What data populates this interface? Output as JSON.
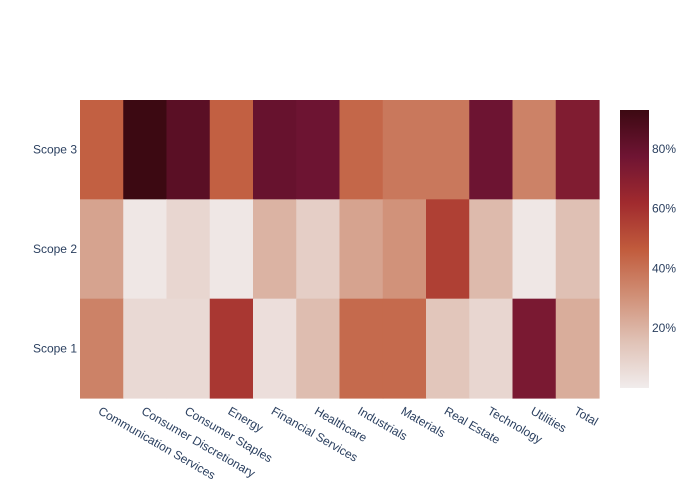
{
  "chart_data": {
    "type": "heatmap",
    "title": "",
    "xlabel": "",
    "ylabel": "",
    "categories": [
      "Communication Services",
      "Consumer Discretionary",
      "Consumer Staples",
      "Energy",
      "Financial Services",
      "Healthcare",
      "Industrials",
      "Materials",
      "Real Estate",
      "Technology",
      "Utilities",
      "Total"
    ],
    "rows": [
      "Scope 3",
      "Scope 2",
      "Scope 1"
    ],
    "z": [
      [
        45,
        93,
        84,
        45,
        80,
        78,
        43,
        38,
        38,
        78,
        35,
        72
      ],
      [
        25,
        2,
        8,
        2,
        20,
        11,
        25,
        30,
        55,
        18,
        2,
        16
      ],
      [
        35,
        7,
        7,
        58,
        5,
        17,
        42,
        42,
        14,
        8,
        74,
        22
      ]
    ],
    "zlim": [
      0,
      93
    ],
    "colorscale_name": "amp",
    "colorscale": [
      "#f1ecec",
      "#e0c2b6",
      "#d08f76",
      "#c15b3c",
      "#a02a2e",
      "#6f1433",
      "#3c0912"
    ],
    "colorbar": {
      "ticks": [
        20,
        40,
        60,
        80
      ],
      "tick_labels": [
        "20%",
        "40%",
        "60%",
        "80%"
      ]
    },
    "grid": false,
    "legend": "colorbar-right"
  }
}
